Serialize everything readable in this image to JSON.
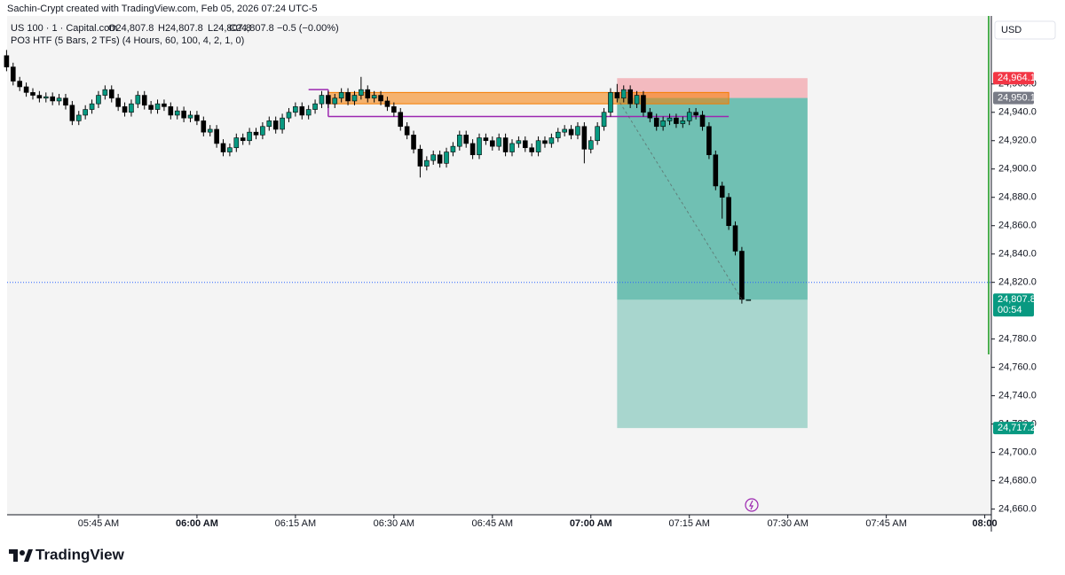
{
  "header": {
    "credit": "Sachin-Crypt created with TradingView.com, Feb 05, 2026 07:24 UTC-5",
    "symbol": "US 100 · 1 · Capital.com",
    "ohlc": [
      "O24,807.8",
      "H24,807.8",
      "L24,807.8",
      "C24,807.8"
    ],
    "change": "−0.5 (−0.00%)",
    "indicator": "PO3 HTF (5 Bars, 2 TFs) (4 Hours, 60, 100, 4, 2, 1, 0)",
    "currency": "USD"
  },
  "footer": {
    "brand": "TradingView"
  },
  "chart_data": {
    "type": "candlestick",
    "xlim": [
      "05:30 AM",
      "08:01 AM"
    ],
    "ylim": [
      24656,
      25008
    ],
    "xticks": [
      "05:45 AM",
      "06:00 AM",
      "06:15 AM",
      "06:30 AM",
      "06:45 AM",
      "07:00 AM",
      "07:15 AM",
      "07:30 AM",
      "07:45 AM",
      "08:00"
    ],
    "yticks": [
      {
        "value": 24660,
        "label": "24,660.0"
      },
      {
        "value": 24680,
        "label": "24,680.0"
      },
      {
        "value": 24700,
        "label": "24,700.0"
      },
      {
        "value": 24720,
        "label": "24,720.0"
      },
      {
        "value": 24740,
        "label": "24,740.0"
      },
      {
        "value": 24760,
        "label": "24,760.0"
      },
      {
        "value": 24780,
        "label": "24,780.0"
      },
      {
        "value": 24820,
        "label": "24,820.0"
      },
      {
        "value": 24840,
        "label": "24,840.0"
      },
      {
        "value": 24860,
        "label": "24,860.0"
      },
      {
        "value": 24880,
        "label": "24,880.0"
      },
      {
        "value": 24900,
        "label": "24,900.0"
      },
      {
        "value": 24920,
        "label": "24,920.0"
      },
      {
        "value": 24940,
        "label": "24,940.0"
      },
      {
        "value": 24960,
        "label": "24,960.0"
      }
    ],
    "grid": false,
    "up_color": "#089981",
    "down_color": "#000000",
    "x": [
      "05:31 AM",
      "05:32 AM",
      "05:33 AM",
      "05:34 AM",
      "05:35 AM",
      "05:36 AM",
      "05:37 AM",
      "05:38 AM",
      "05:39 AM",
      "05:40 AM",
      "05:41 AM",
      "05:42 AM",
      "05:43 AM",
      "05:44 AM",
      "05:45 AM",
      "05:46 AM",
      "05:47 AM",
      "05:48 AM",
      "05:49 AM",
      "05:50 AM",
      "05:51 AM",
      "05:52 AM",
      "05:53 AM",
      "05:54 AM",
      "05:55 AM",
      "05:56 AM",
      "05:57 AM",
      "05:58 AM",
      "05:59 AM",
      "06:00 AM",
      "06:01 AM",
      "06:02 AM",
      "06:03 AM",
      "06:04 AM",
      "06:05 AM",
      "06:06 AM",
      "06:07 AM",
      "06:08 AM",
      "06:09 AM",
      "06:10 AM",
      "06:11 AM",
      "06:12 AM",
      "06:13 AM",
      "06:14 AM",
      "06:15 AM",
      "06:16 AM",
      "06:17 AM",
      "06:18 AM",
      "06:19 AM",
      "06:20 AM",
      "06:21 AM",
      "06:22 AM",
      "06:23 AM",
      "06:24 AM",
      "06:25 AM",
      "06:26 AM",
      "06:27 AM",
      "06:28 AM",
      "06:29 AM",
      "06:30 AM",
      "06:31 AM",
      "06:32 AM",
      "06:33 AM",
      "06:34 AM",
      "06:35 AM",
      "06:36 AM",
      "06:37 AM",
      "06:38 AM",
      "06:39 AM",
      "06:40 AM",
      "06:41 AM",
      "06:42 AM",
      "06:43 AM",
      "06:44 AM",
      "06:45 AM",
      "06:46 AM",
      "06:47 AM",
      "06:48 AM",
      "06:49 AM",
      "06:50 AM",
      "06:51 AM",
      "06:52 AM",
      "06:53 AM",
      "06:54 AM",
      "06:55 AM",
      "06:56 AM",
      "06:57 AM",
      "06:58 AM",
      "06:59 AM",
      "07:00 AM",
      "07:01 AM",
      "07:02 AM",
      "07:03 AM",
      "07:04 AM",
      "07:05 AM",
      "07:06 AM",
      "07:07 AM",
      "07:08 AM",
      "07:09 AM",
      "07:10 AM",
      "07:11 AM",
      "07:12 AM",
      "07:13 AM",
      "07:14 AM",
      "07:15 AM",
      "07:16 AM",
      "07:17 AM",
      "07:18 AM",
      "07:19 AM",
      "07:20 AM",
      "07:21 AM",
      "07:22 AM",
      "07:23 AM",
      "07:24 AM"
    ],
    "candles": [
      [
        24980,
        24984,
        24969,
        24972
      ],
      [
        24972,
        24975,
        24959,
        24962
      ],
      [
        24962,
        24965,
        24955,
        24958
      ],
      [
        24958,
        24961,
        24951,
        24954
      ],
      [
        24954,
        24957,
        24949,
        24952
      ],
      [
        24952,
        24955,
        24947,
        24950
      ],
      [
        24950,
        24954,
        24947,
        24951
      ],
      [
        24951,
        24954,
        24945,
        24948
      ],
      [
        24948,
        24953,
        24945,
        24950
      ],
      [
        24950,
        24953,
        24942,
        24945
      ],
      [
        24945,
        24948,
        24931,
        24934
      ],
      [
        24934,
        24941,
        24931,
        24938
      ],
      [
        24938,
        24945,
        24935,
        24942
      ],
      [
        24942,
        24949,
        24939,
        24946
      ],
      [
        24946,
        24955,
        24943,
        24952
      ],
      [
        24952,
        24959,
        24949,
        24956
      ],
      [
        24956,
        24959,
        24947,
        24950
      ],
      [
        24950,
        24953,
        24941,
        24944
      ],
      [
        24944,
        24947,
        24937,
        24940
      ],
      [
        24940,
        24949,
        24937,
        24946
      ],
      [
        24946,
        24955,
        24943,
        24952
      ],
      [
        24952,
        24955,
        24942,
        24945
      ],
      [
        24945,
        24948,
        24939,
        24942
      ],
      [
        24942,
        24949,
        24939,
        24946
      ],
      [
        24946,
        24949,
        24941,
        24944
      ],
      [
        24944,
        24947,
        24935,
        24938
      ],
      [
        24938,
        24944,
        24935,
        24941
      ],
      [
        24941,
        24944,
        24933,
        24936
      ],
      [
        24936,
        24941,
        24933,
        24938
      ],
      [
        24938,
        24941,
        24931,
        24934
      ],
      [
        24934,
        24937,
        24923,
        24926
      ],
      [
        24926,
        24931,
        24923,
        24928
      ],
      [
        24928,
        24931,
        24915,
        24918
      ],
      [
        24918,
        24921,
        24909,
        24912
      ],
      [
        24912,
        24918,
        24909,
        24915
      ],
      [
        24915,
        24925,
        24912,
        24922
      ],
      [
        24922,
        24925,
        24917,
        24920
      ],
      [
        24920,
        24929,
        24917,
        24926
      ],
      [
        24926,
        24929,
        24921,
        24924
      ],
      [
        24924,
        24933,
        24921,
        24930
      ],
      [
        24930,
        24937,
        24927,
        24934
      ],
      [
        24934,
        24937,
        24925,
        24928
      ],
      [
        24928,
        24939,
        24925,
        24936
      ],
      [
        24936,
        24943,
        24933,
        24940
      ],
      [
        24940,
        24947,
        24937,
        24944
      ],
      [
        24944,
        24947,
        24935,
        24938
      ],
      [
        24938,
        24945,
        24935,
        24942
      ],
      [
        24942,
        24949,
        24939,
        24946
      ],
      [
        24946,
        24955,
        24943,
        24952
      ],
      [
        24952,
        24955,
        24943,
        24946
      ],
      [
        24946,
        24953,
        24943,
        24950
      ],
      [
        24950,
        24957,
        24947,
        24954
      ],
      [
        24954,
        24957,
        24945,
        24948
      ],
      [
        24948,
        24955,
        24945,
        24952
      ],
      [
        24952,
        24965,
        24949,
        24956
      ],
      [
        24956,
        24959,
        24947,
        24950
      ],
      [
        24950,
        24955,
        24947,
        24952
      ],
      [
        24952,
        24955,
        24945,
        24948
      ],
      [
        24948,
        24951,
        24941,
        24944
      ],
      [
        24944,
        24947,
        24937,
        24940
      ],
      [
        24940,
        24943,
        24927,
        24930
      ],
      [
        24930,
        24933,
        24921,
        24924
      ],
      [
        24924,
        24927,
        24911,
        24914
      ],
      [
        24914,
        24917,
        24894,
        24902
      ],
      [
        24902,
        24909,
        24899,
        24906
      ],
      [
        24906,
        24913,
        24903,
        24910
      ],
      [
        24910,
        24913,
        24901,
        24904
      ],
      [
        24904,
        24915,
        24901,
        24912
      ],
      [
        24912,
        24919,
        24909,
        24916
      ],
      [
        24916,
        24927,
        24913,
        24924
      ],
      [
        24924,
        24927,
        24915,
        24918
      ],
      [
        24918,
        24921,
        24907,
        24910
      ],
      [
        24910,
        24925,
        24907,
        24922
      ],
      [
        24922,
        24925,
        24917,
        24920
      ],
      [
        24920,
        24923,
        24913,
        24916
      ],
      [
        24916,
        24925,
        24913,
        24922
      ],
      [
        24922,
        24925,
        24909,
        24912
      ],
      [
        24912,
        24921,
        24909,
        24918
      ],
      [
        24918,
        24923,
        24915,
        24920
      ],
      [
        24920,
        24923,
        24912,
        24915
      ],
      [
        24915,
        24918,
        24909,
        24912
      ],
      [
        24912,
        24923,
        24909,
        24920
      ],
      [
        24920,
        24923,
        24915,
        24918
      ],
      [
        24918,
        24925,
        24915,
        24922
      ],
      [
        24922,
        24929,
        24919,
        24926
      ],
      [
        24926,
        24931,
        24923,
        24928
      ],
      [
        24928,
        24931,
        24921,
        24924
      ],
      [
        24924,
        24933,
        24921,
        24930
      ],
      [
        24930,
        24933,
        24904,
        24914
      ],
      [
        24914,
        24923,
        24911,
        24920
      ],
      [
        24920,
        24933,
        24917,
        24930
      ],
      [
        24930,
        24943,
        24927,
        24940
      ],
      [
        24940,
        24957,
        24937,
        24954
      ],
      [
        24954,
        24960,
        24947,
        24950
      ],
      [
        24950,
        24959,
        24947,
        24956
      ],
      [
        24956,
        24959,
        24943,
        24946
      ],
      [
        24946,
        24955,
        24943,
        24952
      ],
      [
        24952,
        24955,
        24937,
        24940
      ],
      [
        24940,
        24943,
        24933,
        24936
      ],
      [
        24936,
        24939,
        24927,
        24930
      ],
      [
        24930,
        24937,
        24927,
        24934
      ],
      [
        24934,
        24939,
        24931,
        24936
      ],
      [
        24936,
        24939,
        24929,
        24932
      ],
      [
        24932,
        24937,
        24929,
        24934
      ],
      [
        24934,
        24943,
        24931,
        24940
      ],
      [
        24940,
        24943,
        24935,
        24938
      ],
      [
        24938,
        24941,
        24927,
        24930
      ],
      [
        24930,
        24933,
        24907,
        24910
      ],
      [
        24910,
        24913,
        24885,
        24888
      ],
      [
        24888,
        24891,
        24865,
        24880
      ],
      [
        24880,
        24883,
        24857,
        24860
      ],
      [
        24860,
        24863,
        24839,
        24842
      ],
      [
        24842,
        24845,
        24805,
        24808
      ],
      [
        24807.8,
        24807.8,
        24807.8,
        24807.8
      ]
    ],
    "position": {
      "start": "07:04 AM",
      "end": "07:33 AM",
      "entry": 24950.1,
      "stop": 24964.1,
      "target": 24717.2
    },
    "zones": [
      {
        "x": [
          "06:20 AM",
          "07:21 AM"
        ],
        "y": [
          24946,
          24954
        ],
        "color": "#f57c00"
      }
    ],
    "levels": [
      {
        "x": [
          "06:17 AM",
          "06:20 AM"
        ],
        "y": 24956,
        "color": "#9c27b0"
      },
      {
        "x": [
          "06:20 AM",
          "07:21 AM"
        ],
        "y": 24937,
        "color": "#9c27b0"
      }
    ],
    "price_lines": [
      {
        "value": 24820,
        "color": "#2962ff"
      }
    ],
    "price_labels": [
      {
        "value": 24964.1,
        "label": "24,964.1",
        "color": "#f23645"
      },
      {
        "value": 24950.1,
        "label": "24,950.1",
        "color": "#787b86"
      },
      {
        "value": 24807.8,
        "label": "24,807.8",
        "countdown": "00:54",
        "color": "#089981"
      },
      {
        "value": 24717.2,
        "label": "24,717.2",
        "color": "#089981"
      }
    ]
  }
}
